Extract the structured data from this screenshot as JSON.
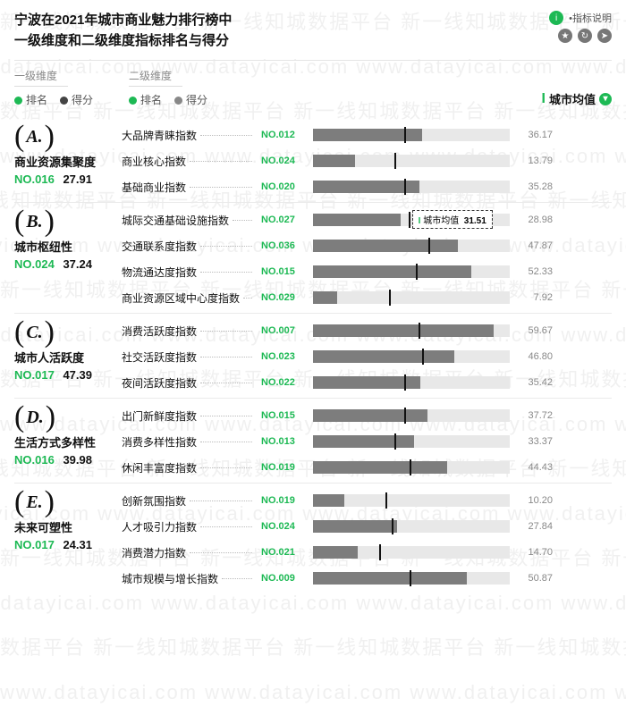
{
  "title_line1": "宁波在2021年城市商业魅力排行榜中",
  "title_line2": "一级维度和二级维度指标排名与得分",
  "header_label": "•指标说明",
  "legend": {
    "l1_title": "一级维度",
    "l2_title": "二级维度",
    "rank_label": "排名",
    "score_label": "得分",
    "rank_color": "#1db954",
    "score_color": "#444444",
    "city_avg_label": "城市均值"
  },
  "colors": {
    "accent": "#1db954",
    "bar_bg": "#e8e8e8",
    "bar_fill": "#7d7d7d",
    "bar_tick": "#111111",
    "text": "#111111",
    "muted": "#888888"
  },
  "bar_max": 65,
  "tooltip": {
    "label": "城市均值",
    "value": "31.51"
  },
  "watermark": {
    "text_cn": "新一线知城数据平台",
    "text_en": "www.datayicai.com"
  },
  "sections": [
    {
      "letter": "A.",
      "name": "商业资源集聚度",
      "rank": "NO.016",
      "score": "27.91",
      "metrics": [
        {
          "label": "大品牌青睐指数",
          "rank": "NO.012",
          "value": 36.17,
          "avg": 30
        },
        {
          "label": "商业核心指数",
          "rank": "NO.024",
          "value": 13.79,
          "avg": 27
        },
        {
          "label": "基础商业指数",
          "rank": "NO.020",
          "value": 35.28,
          "avg": 30
        }
      ]
    },
    {
      "letter": "B.",
      "name": "城市枢纽性",
      "rank": "NO.024",
      "score": "37.24",
      "metrics": [
        {
          "label": "城际交通基础设施指数",
          "rank": "NO.027",
          "value": 28.98,
          "avg": 31.51,
          "show_tooltip": true
        },
        {
          "label": "交通联系度指数",
          "rank": "NO.036",
          "value": 47.87,
          "avg": 38
        },
        {
          "label": "物流通达度指数",
          "rank": "NO.015",
          "value": 52.33,
          "avg": 34
        },
        {
          "label": "商业资源区域中心度指数",
          "rank": "NO.029",
          "value": 7.92,
          "avg": 25
        }
      ]
    },
    {
      "letter": "C.",
      "name": "城市人活跃度",
      "rank": "NO.017",
      "score": "47.39",
      "metrics": [
        {
          "label": "消费活跃度指数",
          "rank": "NO.007",
          "value": 59.67,
          "avg": 35
        },
        {
          "label": "社交活跃度指数",
          "rank": "NO.023",
          "value": 46.8,
          "avg": 36
        },
        {
          "label": "夜间活跃度指数",
          "rank": "NO.022",
          "value": 35.42,
          "avg": 30
        }
      ]
    },
    {
      "letter": "D.",
      "name": "生活方式多样性",
      "rank": "NO.016",
      "score": "39.98",
      "metrics": [
        {
          "label": "出门新鲜度指数",
          "rank": "NO.015",
          "value": 37.72,
          "avg": 30
        },
        {
          "label": "消费多样性指数",
          "rank": "NO.013",
          "value": 33.37,
          "avg": 27
        },
        {
          "label": "休闲丰富度指数",
          "rank": "NO.019",
          "value": 44.43,
          "avg": 32
        }
      ]
    },
    {
      "letter": "E.",
      "name": "未来可塑性",
      "rank": "NO.017",
      "score": "24.31",
      "metrics": [
        {
          "label": "创新氛围指数",
          "rank": "NO.019",
          "value": 10.2,
          "avg": 24
        },
        {
          "label": "人才吸引力指数",
          "rank": "NO.024",
          "value": 27.84,
          "avg": 26
        },
        {
          "label": "消费潜力指数",
          "rank": "NO.021",
          "value": 14.7,
          "avg": 22
        },
        {
          "label": "城市规模与增长指数",
          "rank": "NO.009",
          "value": 50.87,
          "avg": 32
        }
      ]
    }
  ]
}
